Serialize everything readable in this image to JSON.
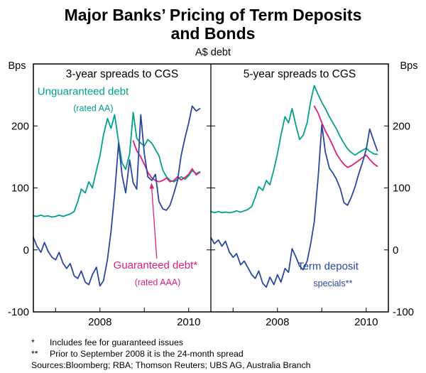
{
  "title": {
    "line1": "Major Banks’ Pricing of Term Deposits",
    "line2": "and Bonds"
  },
  "subtitle": "A$ debt",
  "footnotes": [
    {
      "marker": "*",
      "text": "Includes fee for guaranteed issues"
    },
    {
      "marker": "**",
      "text": "Prior to September 2008 it is the 24-month spread"
    }
  ],
  "sources": "Sources:Bloomberg; RBA; Thomson Reuters; UBS AG, Australia Branch",
  "colors": {
    "unguaranteed": "#00A08B",
    "guaranteed": "#DE1E7E",
    "term_deposit": "#2A47A0",
    "axis": "#000000"
  },
  "chart_data": [
    {
      "type": "line",
      "title": "3-year spreads to CGS",
      "unit": "Bps",
      "ylim": [
        -100,
        300
      ],
      "yticks": [
        -100,
        0,
        100,
        200
      ],
      "xlim": [
        2006.5,
        2010.5
      ],
      "xticks": [
        2007,
        2008,
        2009,
        2010
      ],
      "xtick_labels": [
        "",
        "2008",
        "",
        "2010"
      ],
      "series": [
        {
          "id": "unguaranteed-debt-3y",
          "name": "Unguaranteed debt (rated AA)",
          "color": "#00A08B",
          "points": [
            [
              2006.5,
              55
            ],
            [
              2006.58,
              54
            ],
            [
              2006.67,
              56
            ],
            [
              2006.75,
              54
            ],
            [
              2006.83,
              55
            ],
            [
              2006.92,
              53
            ],
            [
              2007.0,
              54
            ],
            [
              2007.08,
              56
            ],
            [
              2007.17,
              54
            ],
            [
              2007.25,
              56
            ],
            [
              2007.33,
              58
            ],
            [
              2007.42,
              62
            ],
            [
              2007.5,
              78
            ],
            [
              2007.58,
              98
            ],
            [
              2007.67,
              92
            ],
            [
              2007.75,
              110
            ],
            [
              2007.83,
              100
            ],
            [
              2007.92,
              128
            ],
            [
              2008.0,
              152
            ],
            [
              2008.08,
              185
            ],
            [
              2008.17,
              212
            ],
            [
              2008.25,
              196
            ],
            [
              2008.33,
              218
            ],
            [
              2008.42,
              175
            ],
            [
              2008.5,
              140
            ],
            [
              2008.58,
              130
            ],
            [
              2008.67,
              155
            ],
            [
              2008.75,
              222
            ],
            [
              2008.83,
              180
            ],
            [
              2008.92,
              172
            ],
            [
              2009.0,
              168
            ],
            [
              2009.08,
              178
            ],
            [
              2009.17,
              172
            ],
            [
              2009.25,
              162
            ],
            [
              2009.33,
              152
            ],
            [
              2009.42,
              128
            ],
            [
              2009.5,
              118
            ],
            [
              2009.58,
              112
            ],
            [
              2009.67,
              110
            ],
            [
              2009.75,
              114
            ],
            [
              2009.83,
              118
            ],
            [
              2009.92,
              114
            ],
            [
              2010.0,
              120
            ],
            [
              2010.08,
              128
            ],
            [
              2010.17,
              123
            ],
            [
              2010.25,
              126
            ]
          ]
        },
        {
          "id": "guaranteed-debt-3y",
          "name": "Guaranteed debt* (rated AAA)",
          "color": "#DE1E7E",
          "points": [
            [
              2008.75,
              176
            ],
            [
              2008.83,
              160
            ],
            [
              2008.92,
              150
            ],
            [
              2009.0,
              138
            ],
            [
              2009.08,
              125
            ],
            [
              2009.17,
              116
            ],
            [
              2009.25,
              112
            ],
            [
              2009.33,
              110
            ],
            [
              2009.42,
              112
            ],
            [
              2009.5,
              116
            ],
            [
              2009.58,
              110
            ],
            [
              2009.67,
              112
            ],
            [
              2009.75,
              118
            ],
            [
              2009.83,
              113
            ],
            [
              2009.92,
              117
            ],
            [
              2010.0,
              122
            ],
            [
              2010.08,
              131
            ],
            [
              2010.17,
              121
            ],
            [
              2010.25,
              125
            ]
          ]
        },
        {
          "id": "term-deposit-specials-3y",
          "name": "Term deposit specials**",
          "color": "#2A47A0",
          "points": [
            [
              2006.5,
              20
            ],
            [
              2006.58,
              6
            ],
            [
              2006.67,
              -4
            ],
            [
              2006.75,
              12
            ],
            [
              2006.83,
              -2
            ],
            [
              2006.92,
              -12
            ],
            [
              2007.0,
              -16
            ],
            [
              2007.08,
              -4
            ],
            [
              2007.17,
              -22
            ],
            [
              2007.25,
              -30
            ],
            [
              2007.33,
              -22
            ],
            [
              2007.42,
              -42
            ],
            [
              2007.5,
              -46
            ],
            [
              2007.58,
              -34
            ],
            [
              2007.67,
              -52
            ],
            [
              2007.75,
              -56
            ],
            [
              2007.83,
              -40
            ],
            [
              2007.92,
              -28
            ],
            [
              2008.0,
              -58
            ],
            [
              2008.08,
              -50
            ],
            [
              2008.17,
              -15
            ],
            [
              2008.25,
              30
            ],
            [
              2008.33,
              90
            ],
            [
              2008.42,
              172
            ],
            [
              2008.5,
              120
            ],
            [
              2008.58,
              92
            ],
            [
              2008.67,
              145
            ],
            [
              2008.75,
              108
            ],
            [
              2008.83,
              98
            ],
            [
              2008.92,
              218
            ],
            [
              2009.0,
              155
            ],
            [
              2009.08,
              118
            ],
            [
              2009.17,
              112
            ],
            [
              2009.25,
              122
            ],
            [
              2009.33,
              78
            ],
            [
              2009.42,
              66
            ],
            [
              2009.5,
              64
            ],
            [
              2009.58,
              72
            ],
            [
              2009.67,
              92
            ],
            [
              2009.75,
              112
            ],
            [
              2009.83,
              152
            ],
            [
              2009.92,
              182
            ],
            [
              2010.0,
              205
            ],
            [
              2010.08,
              232
            ],
            [
              2010.17,
              224
            ],
            [
              2010.25,
              228
            ]
          ]
        }
      ],
      "annotations": [
        {
          "text": "Unguaranteed debt",
          "x": 2007.62,
          "y": 250,
          "size": 15,
          "color": "#00A08B"
        },
        {
          "text": "(rated AA)",
          "x": 2007.85,
          "y": 224,
          "size": 12.5,
          "color": "#00A08B"
        },
        {
          "text": "Guaranteed debt*",
          "x": 2009.25,
          "y": -30,
          "size": 15,
          "color": "#DE1E7E"
        },
        {
          "text": "(rated AAA)",
          "x": 2009.3,
          "y": -57,
          "size": 12.5,
          "color": "#DE1E7E"
        }
      ],
      "arrows": [
        {
          "from": [
            2009.28,
            -14
          ],
          "to": [
            2009.16,
            108
          ],
          "color": "#DE1E7E"
        }
      ]
    },
    {
      "type": "line",
      "title": "5-year spreads to CGS",
      "unit": "Bps",
      "ylim": [
        -100,
        300
      ],
      "yticks": [
        -100,
        0,
        100,
        200
      ],
      "xlim": [
        2006.5,
        2010.5
      ],
      "xticks": [
        2007,
        2008,
        2009,
        2010
      ],
      "xtick_labels": [
        "",
        "2008",
        "",
        "2010"
      ],
      "series": [
        {
          "id": "unguaranteed-debt-5y",
          "name": "Unguaranteed debt (rated AA)",
          "color": "#00A08B",
          "points": [
            [
              2006.5,
              62
            ],
            [
              2006.58,
              60
            ],
            [
              2006.67,
              62
            ],
            [
              2006.75,
              60
            ],
            [
              2006.83,
              61
            ],
            [
              2006.92,
              60
            ],
            [
              2007.0,
              61
            ],
            [
              2007.08,
              63
            ],
            [
              2007.17,
              61
            ],
            [
              2007.25,
              63
            ],
            [
              2007.33,
              65
            ],
            [
              2007.42,
              70
            ],
            [
              2007.5,
              85
            ],
            [
              2007.58,
              102
            ],
            [
              2007.67,
              96
            ],
            [
              2007.75,
              112
            ],
            [
              2007.83,
              105
            ],
            [
              2007.92,
              130
            ],
            [
              2008.0,
              155
            ],
            [
              2008.08,
              185
            ],
            [
              2008.17,
              215
            ],
            [
              2008.25,
              205
            ],
            [
              2008.33,
              228
            ],
            [
              2008.42,
              200
            ],
            [
              2008.5,
              178
            ],
            [
              2008.58,
              185
            ],
            [
              2008.67,
              205
            ],
            [
              2008.75,
              240
            ],
            [
              2008.83,
              265
            ],
            [
              2008.92,
              250
            ],
            [
              2009.0,
              238
            ],
            [
              2009.08,
              228
            ],
            [
              2009.17,
              215
            ],
            [
              2009.25,
              205
            ],
            [
              2009.33,
              195
            ],
            [
              2009.42,
              182
            ],
            [
              2009.5,
              172
            ],
            [
              2009.58,
              163
            ],
            [
              2009.67,
              157
            ],
            [
              2009.75,
              153
            ],
            [
              2009.83,
              157
            ],
            [
              2009.92,
              161
            ],
            [
              2010.0,
              164
            ],
            [
              2010.08,
              159
            ],
            [
              2010.17,
              155
            ],
            [
              2010.25,
              154
            ]
          ]
        },
        {
          "id": "guaranteed-debt-5y",
          "name": "Guaranteed debt* (rated AAA)",
          "color": "#DE1E7E",
          "points": [
            [
              2008.83,
              232
            ],
            [
              2008.92,
              220
            ],
            [
              2009.0,
              205
            ],
            [
              2009.08,
              192
            ],
            [
              2009.17,
              180
            ],
            [
              2009.25,
              168
            ],
            [
              2009.33,
              155
            ],
            [
              2009.42,
              145
            ],
            [
              2009.5,
              138
            ],
            [
              2009.58,
              133
            ],
            [
              2009.67,
              136
            ],
            [
              2009.75,
              140
            ],
            [
              2009.83,
              144
            ],
            [
              2009.92,
              149
            ],
            [
              2010.0,
              153
            ],
            [
              2010.08,
              146
            ],
            [
              2010.17,
              139
            ],
            [
              2010.25,
              135
            ]
          ]
        },
        {
          "id": "term-deposit-specials-5y",
          "name": "Term deposit specials**",
          "color": "#2A47A0",
          "points": [
            [
              2006.5,
              20
            ],
            [
              2006.58,
              10
            ],
            [
              2006.67,
              16
            ],
            [
              2006.75,
              6
            ],
            [
              2006.83,
              14
            ],
            [
              2006.92,
              -4
            ],
            [
              2007.0,
              -12
            ],
            [
              2007.08,
              -6
            ],
            [
              2007.17,
              -24
            ],
            [
              2007.25,
              -18
            ],
            [
              2007.33,
              -28
            ],
            [
              2007.42,
              -40
            ],
            [
              2007.5,
              -46
            ],
            [
              2007.58,
              -34
            ],
            [
              2007.67,
              -54
            ],
            [
              2007.75,
              -60
            ],
            [
              2007.83,
              -44
            ],
            [
              2007.92,
              -56
            ],
            [
              2008.0,
              -40
            ],
            [
              2008.08,
              -52
            ],
            [
              2008.17,
              -30
            ],
            [
              2008.25,
              -36
            ],
            [
              2008.33,
              2
            ],
            [
              2008.42,
              -12
            ],
            [
              2008.5,
              -26
            ],
            [
              2008.58,
              -32
            ],
            [
              2008.67,
              -18
            ],
            [
              2008.75,
              10
            ],
            [
              2008.83,
              45
            ],
            [
              2008.92,
              120
            ],
            [
              2009.0,
              202
            ],
            [
              2009.08,
              158
            ],
            [
              2009.17,
              132
            ],
            [
              2009.25,
              124
            ],
            [
              2009.33,
              114
            ],
            [
              2009.42,
              98
            ],
            [
              2009.5,
              76
            ],
            [
              2009.58,
              72
            ],
            [
              2009.67,
              86
            ],
            [
              2009.75,
              102
            ],
            [
              2009.83,
              122
            ],
            [
              2009.92,
              142
            ],
            [
              2010.0,
              162
            ],
            [
              2010.08,
              195
            ],
            [
              2010.17,
              176
            ],
            [
              2010.25,
              160
            ]
          ]
        }
      ],
      "annotations": [
        {
          "text": "Term deposit",
          "x": 2009.14,
          "y": -32,
          "size": 15,
          "color": "#2A47A0"
        },
        {
          "text": "specials**",
          "x": 2009.25,
          "y": -59,
          "size": 12.5,
          "color": "#2A47A0"
        }
      ],
      "arrows": []
    }
  ]
}
